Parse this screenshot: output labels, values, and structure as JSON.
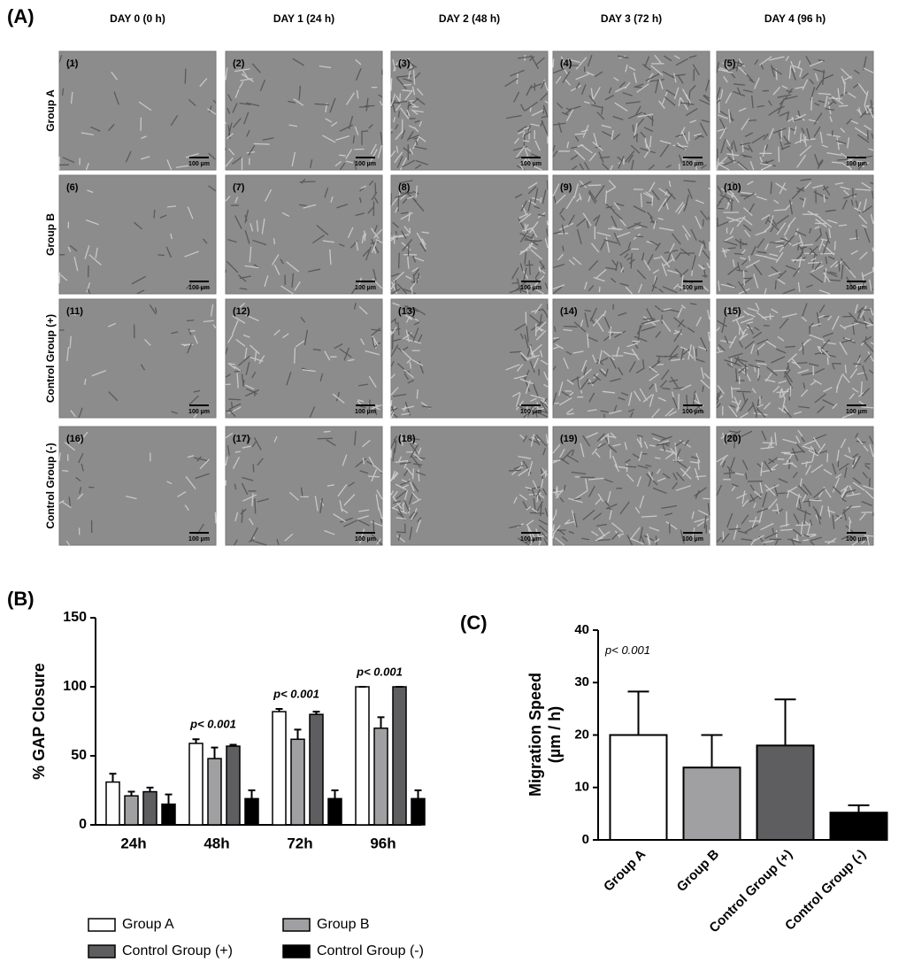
{
  "micrographs": {
    "label": "(A)",
    "columns": [
      "DAY 0 (0 h)",
      "DAY 1 (24 h)",
      "DAY 2 (48 h)",
      "DAY 3 (72 h)",
      "DAY 4  (96 h)"
    ],
    "rows": [
      "Group A",
      "Group B",
      "Control Group (+)",
      "Control Group (-)"
    ],
    "images": [
      "(1)",
      "(2)",
      "(3)",
      "(4)",
      "(5)",
      "(6)",
      "(7)",
      "(8)",
      "(9)",
      "(10)",
      "(11)",
      "(12)",
      "(13)",
      "(14)",
      "(15)",
      "(16)",
      "(17)",
      "(18)",
      "(19)",
      "(20)"
    ],
    "scale_bar": "100 µm"
  },
  "chart_data": [
    {
      "type": "bar",
      "label": "(B)",
      "ylabel": "% GAP Closure",
      "categories": [
        "24h",
        "48h",
        "72h",
        "96h"
      ],
      "series": [
        {
          "name": "Group A",
          "color": "#ffffff",
          "values": [
            31,
            59,
            82,
            100
          ],
          "errors": [
            6,
            3,
            2,
            0
          ]
        },
        {
          "name": "Group B",
          "color": "#a0a0a2",
          "values": [
            21,
            48,
            62,
            70
          ],
          "errors": [
            3,
            8,
            7,
            8
          ]
        },
        {
          "name": "Control Group (+)",
          "color": "#5e5e60",
          "values": [
            24,
            57,
            80,
            100
          ],
          "errors": [
            3,
            1,
            2,
            0
          ]
        },
        {
          "name": "Control Group (-)",
          "color": "#000000",
          "values": [
            15,
            19,
            19,
            19
          ],
          "errors": [
            7,
            6,
            6,
            6
          ]
        }
      ],
      "annotations": [
        {
          "category": "48h",
          "text": "p< 0.001"
        },
        {
          "category": "72h",
          "text": "p< 0.001"
        },
        {
          "category": "96h",
          "text": "p< 0.001"
        }
      ],
      "ylim": [
        0,
        150
      ],
      "yticks": [
        0,
        50,
        100,
        150
      ]
    },
    {
      "type": "bar",
      "label": "(C)",
      "ylabel": [
        "Migration Speed",
        "(µm / h)"
      ],
      "categories": [
        "Group A",
        "Group B",
        "Control Group (+)",
        "Control Group (-)"
      ],
      "values": [
        20,
        13.8,
        18,
        5.2
      ],
      "errors": [
        8.3,
        6.2,
        8.8,
        1.4
      ],
      "colors": [
        "#ffffff",
        "#a0a0a2",
        "#5e5e60",
        "#000000"
      ],
      "annotations": [
        {
          "category": "Group A",
          "text": "p< 0.001"
        }
      ],
      "ylim": [
        0,
        40
      ],
      "yticks": [
        0,
        10,
        20,
        30,
        40
      ]
    }
  ]
}
